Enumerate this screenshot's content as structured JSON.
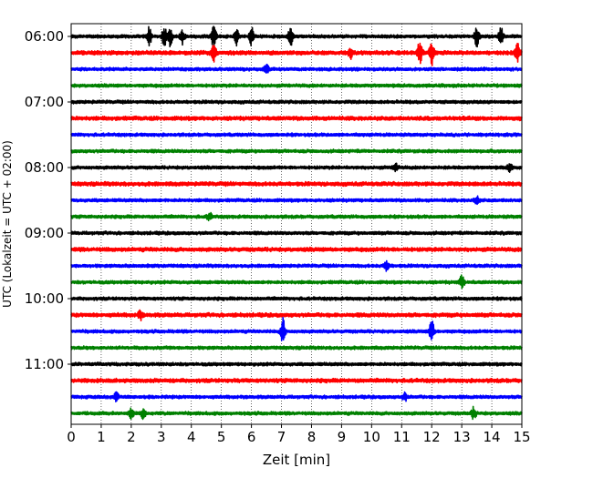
{
  "chart_data": {
    "type": "line",
    "title": "",
    "xlabel": "Zeit  [min]",
    "ylabel": "UTC (Lokalzeit = UTC + 02:00)",
    "xlim": [
      0,
      15
    ],
    "x_ticks": [
      "0",
      "1",
      "2",
      "3",
      "4",
      "5",
      "6",
      "7",
      "8",
      "9",
      "10",
      "11",
      "12",
      "13",
      "14",
      "15"
    ],
    "y_tick_labels": [
      "06:00",
      "07:00",
      "08:00",
      "09:00",
      "10:00",
      "11:00"
    ],
    "grid": "vertical dotted at each minute",
    "trace_start_times": [
      "06:00",
      "06:15",
      "06:30",
      "06:45",
      "07:00",
      "07:15",
      "07:30",
      "07:45",
      "08:00",
      "08:15",
      "08:30",
      "08:45",
      "09:00",
      "09:15",
      "09:30",
      "09:45",
      "10:00",
      "10:15",
      "10:30",
      "10:45",
      "11:00",
      "11:15",
      "11:30",
      "11:45"
    ],
    "color_cycle": [
      "#000000",
      "#ff0000",
      "#0000ff",
      "#008000"
    ],
    "events": [
      {
        "trace": 0,
        "x": 2.6,
        "amp": 0.55
      },
      {
        "trace": 0,
        "x": 3.1,
        "amp": 0.6
      },
      {
        "trace": 0,
        "x": 3.3,
        "amp": 0.55
      },
      {
        "trace": 0,
        "x": 3.7,
        "amp": 0.5
      },
      {
        "trace": 0,
        "x": 4.75,
        "amp": 0.75
      },
      {
        "trace": 0,
        "x": 5.5,
        "amp": 0.5
      },
      {
        "trace": 0,
        "x": 6.0,
        "amp": 0.6
      },
      {
        "trace": 0,
        "x": 7.3,
        "amp": 0.6
      },
      {
        "trace": 0,
        "x": 13.5,
        "amp": 0.6
      },
      {
        "trace": 0,
        "x": 14.3,
        "amp": 0.55
      },
      {
        "trace": 1,
        "x": 4.75,
        "amp": 0.55
      },
      {
        "trace": 1,
        "x": 9.3,
        "amp": 0.3
      },
      {
        "trace": 1,
        "x": 11.6,
        "amp": 0.8
      },
      {
        "trace": 1,
        "x": 12.0,
        "amp": 0.8
      },
      {
        "trace": 1,
        "x": 14.85,
        "amp": 0.6
      },
      {
        "trace": 2,
        "x": 6.5,
        "amp": 0.25
      },
      {
        "trace": 8,
        "x": 10.8,
        "amp": 0.25
      },
      {
        "trace": 8,
        "x": 14.6,
        "amp": 0.25
      },
      {
        "trace": 10,
        "x": 13.5,
        "amp": 0.25
      },
      {
        "trace": 11,
        "x": 4.6,
        "amp": 0.25
      },
      {
        "trace": 14,
        "x": 10.5,
        "amp": 0.3
      },
      {
        "trace": 15,
        "x": 13.0,
        "amp": 0.4
      },
      {
        "trace": 17,
        "x": 2.3,
        "amp": 0.25
      },
      {
        "trace": 18,
        "x": 7.05,
        "amp": 0.8
      },
      {
        "trace": 18,
        "x": 12.0,
        "amp": 0.7
      },
      {
        "trace": 22,
        "x": 1.5,
        "amp": 0.3
      },
      {
        "trace": 22,
        "x": 11.1,
        "amp": 0.25
      },
      {
        "trace": 23,
        "x": 2.0,
        "amp": 0.3
      },
      {
        "trace": 23,
        "x": 2.4,
        "amp": 0.3
      },
      {
        "trace": 23,
        "x": 13.4,
        "amp": 0.35
      }
    ]
  }
}
